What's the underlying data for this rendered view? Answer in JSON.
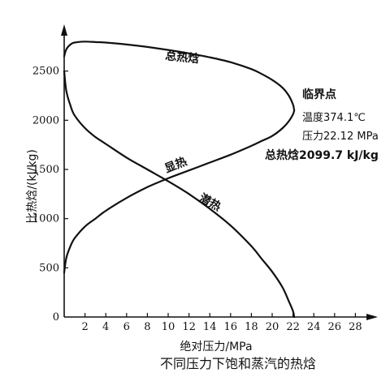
{
  "chart_data": {
    "type": "line",
    "title": "不同压力下饱和蒸汽的热焓",
    "xlabel": "绝对压力/MPa",
    "ylabel": "比热焓/(kJ/kg)",
    "xlim": [
      0,
      30
    ],
    "ylim": [
      0,
      3000
    ],
    "x_ticks": [
      2,
      4,
      6,
      8,
      10,
      12,
      14,
      16,
      18,
      20,
      22,
      24,
      26,
      28
    ],
    "y_ticks": [
      0,
      500,
      1000,
      1500,
      2000,
      2500
    ],
    "grid": false,
    "series": [
      {
        "name": "总热焓",
        "x": [
          0.0,
          0.2,
          0.6,
          1.0,
          2.0,
          3.0,
          4.0,
          6.0,
          8.0,
          10.0,
          12.0,
          14.0,
          16.0,
          18.0,
          19.0,
          20.0,
          21.0,
          21.6,
          22.0,
          22.12
        ],
        "y": [
          2650,
          2720,
          2770,
          2790,
          2800,
          2795,
          2790,
          2770,
          2745,
          2715,
          2680,
          2640,
          2590,
          2520,
          2470,
          2410,
          2330,
          2250,
          2160,
          2099.7
        ]
      },
      {
        "name": "显热",
        "x": [
          0.0,
          0.2,
          0.6,
          1.0,
          2.0,
          3.0,
          4.0,
          6.0,
          8.0,
          10.0,
          12.0,
          14.0,
          16.0,
          18.0,
          19.0,
          20.0,
          21.0,
          21.6,
          22.0,
          22.12
        ],
        "y": [
          450,
          600,
          720,
          800,
          920,
          1000,
          1080,
          1210,
          1320,
          1410,
          1490,
          1570,
          1650,
          1740,
          1790,
          1840,
          1920,
          1990,
          2060,
          2099.7
        ]
      },
      {
        "name": "潜热",
        "x": [
          0.0,
          0.2,
          0.6,
          1.0,
          2.0,
          3.0,
          4.0,
          6.0,
          8.0,
          10.0,
          12.0,
          14.0,
          16.0,
          18.0,
          19.0,
          20.0,
          21.0,
          21.6,
          22.0,
          22.12
        ],
        "y": [
          2500,
          2300,
          2150,
          2050,
          1920,
          1830,
          1760,
          1620,
          1500,
          1380,
          1250,
          1100,
          930,
          720,
          590,
          460,
          300,
          160,
          60,
          0
        ]
      }
    ],
    "annotation": {
      "title": "临界点",
      "lines": [
        "温度374.1℃",
        "压力22.12 MPa"
      ],
      "highlight": "总热焓2099.7 kJ/kg",
      "point": {
        "x": 22.12,
        "y": 2099.7
      }
    }
  }
}
